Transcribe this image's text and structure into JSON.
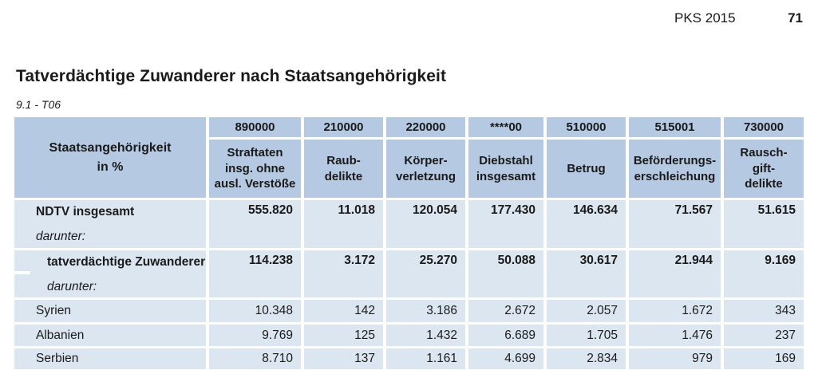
{
  "page_header": {
    "doc_label": "PKS 2015",
    "page_number": "71"
  },
  "title": "Tatverdächtige Zuwanderer nach Staatsangehörigkeit",
  "table_ref": "9.1 - T06",
  "colors": {
    "header_bg": "#b6c9e2",
    "row_bg": "#dce6f1",
    "text": "#1a1a1a"
  },
  "table": {
    "corner_header": "Staatsangehörigkeit\nin %",
    "codes": [
      "890000",
      "210000",
      "220000",
      "****00",
      "510000",
      "515001",
      "730000"
    ],
    "column_labels": [
      "Straftaten\ninsg. ohne\nausl. Verstöße",
      "Raub-\ndelikte",
      "Körper-\nverletzung",
      "Diebstahl\ninsgesamt",
      "Betrug",
      "Beförderungs-\nerschleichung",
      "Rausch-\ngift-\ndelikte"
    ],
    "rows": [
      {
        "label": "NDTV insgesamt",
        "sublabel": "darunter:",
        "values": [
          "555.820",
          "11.018",
          "120.054",
          "177.430",
          "146.634",
          "71.567",
          "51.615"
        ]
      },
      {
        "label": "tatverdächtige Zuwanderer",
        "sublabel": "darunter:",
        "values": [
          "114.238",
          "3.172",
          "25.270",
          "50.088",
          "30.617",
          "21.944",
          "9.169"
        ]
      },
      {
        "label": "Syrien",
        "values": [
          "10.348",
          "142",
          "3.186",
          "2.672",
          "2.057",
          "1.672",
          "343"
        ]
      },
      {
        "label": "Albanien",
        "values": [
          "9.769",
          "125",
          "1.432",
          "6.689",
          "1.705",
          "1.476",
          "237"
        ]
      },
      {
        "label": "Serbien",
        "values": [
          "8.710",
          "137",
          "1.161",
          "4.699",
          "2.834",
          "979",
          "169"
        ]
      }
    ]
  }
}
